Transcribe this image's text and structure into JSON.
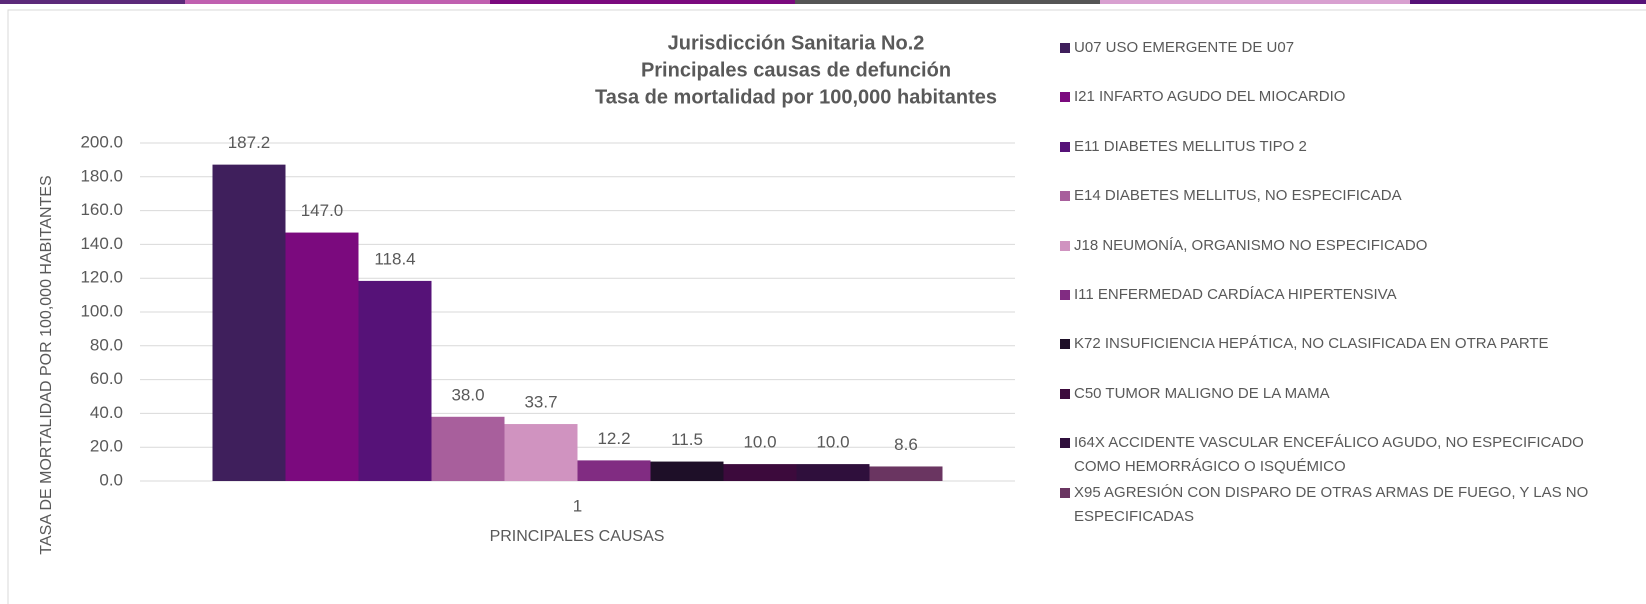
{
  "chart_data": {
    "type": "bar",
    "title_lines": [
      "Jurisdicción Sanitaria No.2",
      "Principales causas de defunción",
      "Tasa de mortalidad por 100,000 habitantes"
    ],
    "x_label": "PRINCIPALES CAUSAS",
    "y_label": "TASA DE MORTALIDAD POR 100,000 HABITANTES",
    "categories": [
      "1"
    ],
    "series": [
      {
        "name": "U07 USO EMERGENTE DE U07",
        "color": "#3f1f5c",
        "values": [
          187.2
        ]
      },
      {
        "name": "I21 INFARTO AGUDO DEL MIOCARDIO",
        "color": "#7b0a7e",
        "values": [
          147
        ],
        "value_labels": [
          "147.0"
        ]
      },
      {
        "name": "E11 DIABETES MELLITUS TIPO 2",
        "color": "#561278",
        "values": [
          118.4
        ]
      },
      {
        "name": "E14 DIABETES MELLITUS, NO ESPECIFICADA",
        "color": "#a85f9c",
        "values": [
          38
        ],
        "value_labels": [
          "38.0"
        ]
      },
      {
        "name": "J18 NEUMONÍA, ORGANISMO NO ESPECIFICADO",
        "color": "#d093c0",
        "values": [
          33.7
        ]
      },
      {
        "name": "I11 ENFERMEDAD CARDÍACA HIPERTENSIVA",
        "color": "#812c82",
        "values": [
          12.2
        ]
      },
      {
        "name": "K72 INSUFICIENCIA HEPÁTICA, NO CLASIFICADA EN OTRA PARTE",
        "color": "#1e0f28",
        "values": [
          11.5
        ]
      },
      {
        "name": "C50 TUMOR MALIGNO DE LA MAMA",
        "color": "#3c0a3c",
        "values": [
          10
        ],
        "value_labels": [
          "10.0"
        ]
      },
      {
        "name": "I64X ACCIDENTE VASCULAR ENCEFÁLICO AGUDO, NO ESPECIFICADO COMO HEMORRÁGICO O ISQUÉMICO",
        "color": "#2f0f3c",
        "values": [
          10
        ],
        "value_labels": [
          "10.0"
        ]
      },
      {
        "name": "X95 AGRESIÓN CON DISPARO DE OTRAS ARMAS DE FUEGO, Y LAS NO ESPECIFICADAS",
        "color": "#6a3561",
        "values": [
          8.6
        ]
      }
    ],
    "ylim": [
      0,
      200
    ],
    "yticks": [
      {
        "value": 0,
        "label": "0.0"
      },
      {
        "value": 20,
        "label": "20.0"
      },
      {
        "value": 40,
        "label": "40.0"
      },
      {
        "value": 60,
        "label": "60.0"
      },
      {
        "value": 80,
        "label": "80.0"
      },
      {
        "value": 100,
        "label": "100.0"
      },
      {
        "value": 120,
        "label": "120.0"
      },
      {
        "value": 140,
        "label": "140.0"
      },
      {
        "value": 160,
        "label": "160.0"
      },
      {
        "value": 180,
        "label": "180.0"
      },
      {
        "value": 200,
        "label": "200.0"
      }
    ],
    "grid": true
  }
}
